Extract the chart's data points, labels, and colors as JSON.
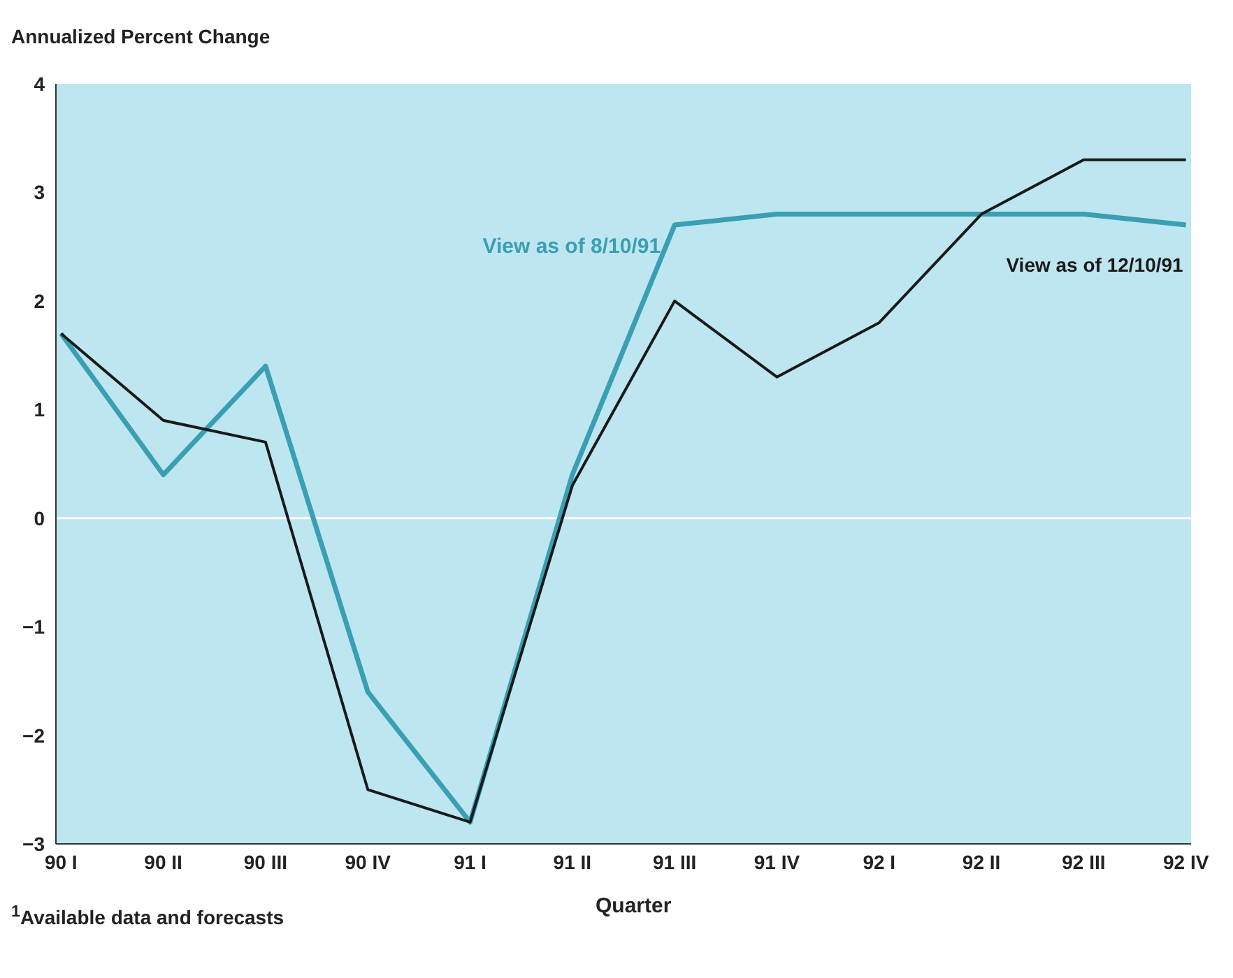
{
  "chart_data": {
    "type": "line",
    "ylabel": "Annualized Percent Change",
    "xlabel": "Quarter",
    "categories": [
      "90 I",
      "90 II",
      "90 III",
      "90 IV",
      "91 I",
      "91 II",
      "91 III",
      "91 IV",
      "92 I",
      "92 II",
      "92 III",
      "92 IV"
    ],
    "series": [
      {
        "name": "View as of 8/10/91",
        "color": "#3a9fb2",
        "values": [
          1.7,
          0.4,
          1.4,
          -1.6,
          -2.8,
          0.4,
          2.7,
          2.8,
          2.8,
          2.8,
          2.8,
          2.7
        ]
      },
      {
        "name": "View as of 12/10/91",
        "color": "#1a1a1a",
        "values": [
          1.7,
          0.9,
          0.7,
          -2.5,
          -2.8,
          0.3,
          2.0,
          1.3,
          1.8,
          2.8,
          3.3,
          3.3
        ]
      }
    ],
    "ylim": [
      -3,
      4
    ],
    "yticks": [
      -3,
      -2,
      -1,
      0,
      1,
      2,
      3,
      4
    ],
    "ref_lines": [
      {
        "axis": "y",
        "value": 0,
        "color": "#ffffff"
      }
    ],
    "grid": false,
    "legend": false,
    "marker": "none",
    "line_style": "solid",
    "annotations": [
      "$^{1}$Available data and forecasts"
    ]
  }
}
